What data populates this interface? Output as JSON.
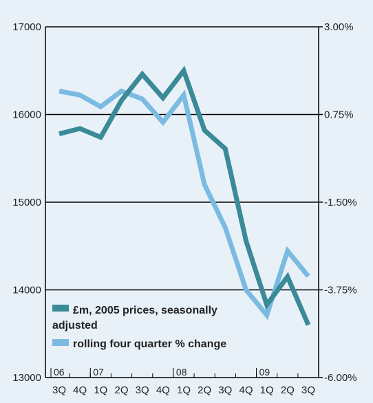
{
  "chart_data": {
    "type": "line",
    "title": "",
    "xlabel": "",
    "ylabel": "",
    "categories": [
      "3Q",
      "4Q",
      "1Q",
      "2Q",
      "3Q",
      "4Q",
      "1Q",
      "2Q",
      "3Q",
      "4Q",
      "1Q",
      "2Q",
      "3Q"
    ],
    "years": [
      {
        "label": "06",
        "start_index": 0
      },
      {
        "label": "07",
        "start_index": 2
      },
      {
        "label": "08",
        "start_index": 6
      },
      {
        "label": "09",
        "start_index": 10
      }
    ],
    "ylim_left": [
      13000,
      17000
    ],
    "yticks_left": [
      "17000",
      "16000",
      "15000",
      "14000",
      "13000"
    ],
    "ylim_right": [
      -6.0,
      3.0
    ],
    "yticks_right": [
      "3.00%",
      "0.75%",
      "-1.50%",
      "-3.75%",
      "-6.00%"
    ],
    "grid": true,
    "legend_position": "bottom-left",
    "series": [
      {
        "name": "£m, 2005 prices, seasonally adjusted",
        "axis": "left",
        "color": "#3a8a98",
        "values": [
          15780,
          15840,
          15740,
          16160,
          16460,
          16190,
          16500,
          15820,
          15610,
          14560,
          13830,
          14150,
          13600
        ]
      },
      {
        "name": "rolling four quarter % change",
        "axis": "right",
        "color": "#7bbbe2",
        "values": [
          1.35,
          1.25,
          0.95,
          1.35,
          1.15,
          0.55,
          1.25,
          -1.05,
          -2.15,
          -3.75,
          -4.4,
          -2.75,
          -3.4
        ]
      }
    ]
  }
}
